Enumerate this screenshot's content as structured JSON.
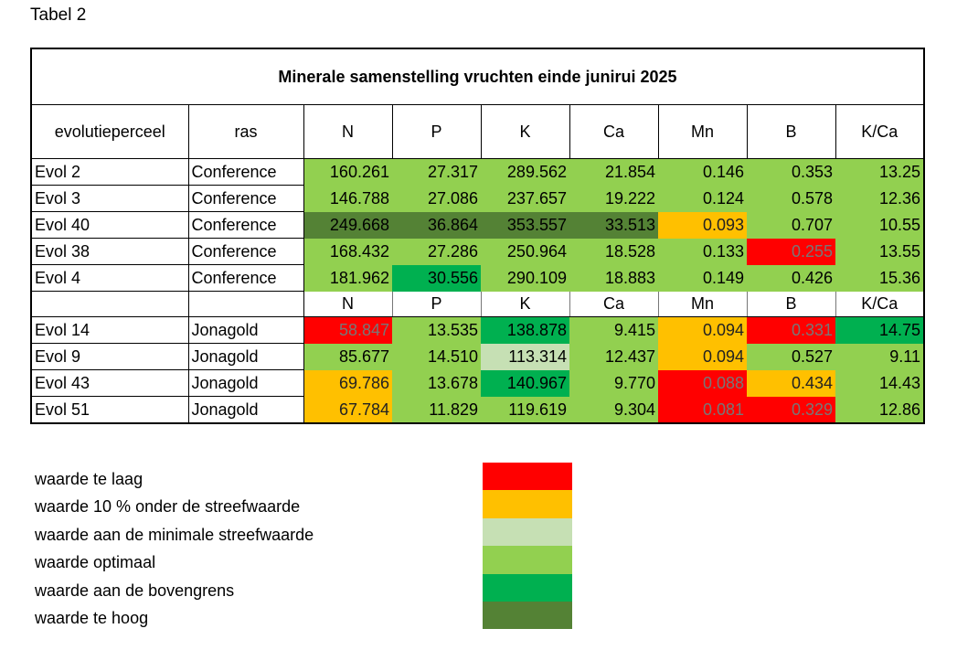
{
  "caption": "Tabel 2",
  "table": {
    "title": "Minerale samenstelling vruchten einde junirui 2025",
    "header": [
      "evolutieperceel",
      "ras",
      "N",
      "P",
      "K",
      "Ca",
      "Mn",
      "B",
      "K/Ca"
    ],
    "conference_rows": [
      {
        "perceel": "Evol 2",
        "ras": "Conference",
        "values": [
          "160.261",
          "27.317",
          "289.562",
          "21.854",
          "0.146",
          "0.353",
          "13.25"
        ],
        "classes": [
          "optimaal",
          "optimaal",
          "optimaal",
          "optimaal",
          "optimaal",
          "optimaal",
          "optimaal"
        ]
      },
      {
        "perceel": "Evol 3",
        "ras": "Conference",
        "values": [
          "146.788",
          "27.086",
          "237.657",
          "19.222",
          "0.124",
          "0.578",
          "12.36"
        ],
        "classes": [
          "optimaal",
          "optimaal",
          "optimaal",
          "optimaal",
          "optimaal",
          "optimaal",
          "optimaal"
        ]
      },
      {
        "perceel": "Evol 40",
        "ras": "Conference",
        "values": [
          "249.668",
          "36.864",
          "353.557",
          "33.513",
          "0.093",
          "0.707",
          "10.55"
        ],
        "classes": [
          "te_hoog",
          "te_hoog",
          "te_hoog",
          "te_hoog",
          "onder",
          "optimaal",
          "optimaal"
        ]
      },
      {
        "perceel": "Evol 38",
        "ras": "Conference",
        "values": [
          "168.432",
          "27.286",
          "250.964",
          "18.528",
          "0.133",
          "0.255",
          "13.55"
        ],
        "classes": [
          "optimaal",
          "optimaal",
          "optimaal",
          "optimaal",
          "optimaal",
          "te_laag",
          "optimaal"
        ]
      },
      {
        "perceel": "Evol 4",
        "ras": "Conference",
        "values": [
          "181.962",
          "30.556",
          "290.109",
          "18.883",
          "0.149",
          "0.426",
          "15.36"
        ],
        "classes": [
          "optimaal",
          "bovengrens",
          "optimaal",
          "optimaal",
          "optimaal",
          "optimaal",
          "optimaal"
        ]
      }
    ],
    "subheader": [
      "N",
      "P",
      "K",
      "Ca",
      "Mn",
      "B",
      "K/Ca"
    ],
    "jonagold_rows": [
      {
        "perceel": "Evol 14",
        "ras": "Jonagold",
        "values": [
          "58.847",
          "13.535",
          "138.878",
          "9.415",
          "0.094",
          "0.331",
          "14.75"
        ],
        "classes": [
          "te_laag",
          "optimaal",
          "bovengrens",
          "optimaal",
          "onder",
          "te_laag",
          "bovengrens"
        ]
      },
      {
        "perceel": "Evol 9",
        "ras": "Jonagold",
        "values": [
          "85.677",
          "14.510",
          "113.314",
          "12.437",
          "0.094",
          "0.527",
          "9.11"
        ],
        "classes": [
          "optimaal",
          "optimaal",
          "minimaal",
          "optimaal",
          "onder",
          "optimaal",
          "optimaal"
        ]
      },
      {
        "perceel": "Evol 43",
        "ras": "Jonagold",
        "values": [
          "69.786",
          "13.678",
          "140.967",
          "9.770",
          "0.088",
          "0.434",
          "14.43"
        ],
        "classes": [
          "onder",
          "optimaal",
          "bovengrens",
          "optimaal",
          "te_laag",
          "onder",
          "optimaal"
        ]
      },
      {
        "perceel": "Evol 51",
        "ras": "Jonagold",
        "values": [
          "67.784",
          "11.829",
          "119.619",
          "9.304",
          "0.081",
          "0.329",
          "12.86"
        ],
        "classes": [
          "onder",
          "optimaal",
          "optimaal",
          "optimaal",
          "te_laag",
          "te_laag",
          "optimaal"
        ]
      }
    ]
  },
  "legend": [
    {
      "label": "waarde te laag",
      "key": "te_laag",
      "color": "#ff0000"
    },
    {
      "label": "waarde 10 % onder de streefwaarde",
      "key": "onder",
      "color": "#ffc000"
    },
    {
      "label": "waarde aan de minimale streefwaarde",
      "key": "minimaal",
      "color": "#c6e0b4"
    },
    {
      "label": "waarde optimaal",
      "key": "optimaal",
      "color": "#92d050"
    },
    {
      "label": "waarde aan de bovengrens",
      "key": "bovengrens",
      "color": "#00b050"
    },
    {
      "label": "waarde te hoog",
      "key": "te_hoog",
      "color": "#548235"
    }
  ]
}
